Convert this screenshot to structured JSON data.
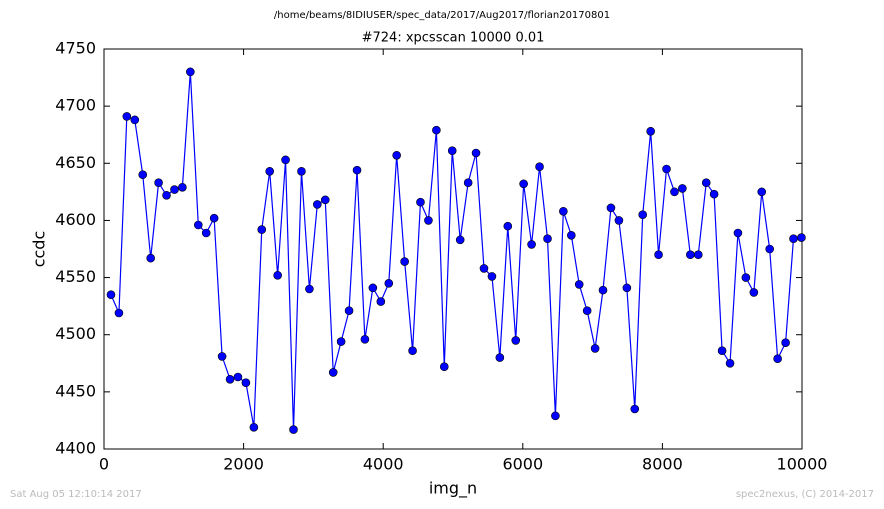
{
  "header": {
    "path": "/home/beams/8IDIUSER/spec_data/2017/Aug2017/florian20170801"
  },
  "footer": {
    "timestamp": "Sat Aug 05 12:10:14 2017",
    "credit": "spec2nexus, (C) 2014-2017"
  },
  "chart_data": {
    "type": "line",
    "title": "#724: xpcsscan 10000 0.01",
    "x_label": "img_n",
    "y_label": "ccdc",
    "x": [
      100,
      214,
      327,
      441,
      555,
      669,
      782,
      896,
      1010,
      1123,
      1237,
      1351,
      1464,
      1578,
      1692,
      1806,
      1919,
      2033,
      2147,
      2260,
      2374,
      2488,
      2601,
      2715,
      2829,
      2943,
      3056,
      3170,
      3284,
      3397,
      3511,
      3625,
      3738,
      3852,
      3966,
      4080,
      4193,
      4307,
      4421,
      4534,
      4648,
      4762,
      4875,
      4989,
      5103,
      5217,
      5330,
      5444,
      5558,
      5671,
      5785,
      5899,
      6012,
      6126,
      6240,
      6354,
      6467,
      6581,
      6695,
      6808,
      6922,
      7036,
      7149,
      7263,
      7377,
      7491,
      7604,
      7718,
      7832,
      7945,
      8059,
      8173,
      8286,
      8400,
      8514,
      8628,
      8741,
      8855,
      8969,
      9082,
      9196,
      9310,
      9423,
      9537,
      9651,
      9765,
      9878,
      9992
    ],
    "series": [
      {
        "name": "ccdc",
        "color": "#0000ff",
        "values": [
          4535,
          4519,
          4691,
          4688,
          4640,
          4567,
          4633,
          4622,
          4627,
          4629,
          4730,
          4596,
          4589,
          4602,
          4481,
          4461,
          4463,
          4458,
          4419,
          4592,
          4643,
          4552,
          4653,
          4417,
          4643,
          4540,
          4614,
          4618,
          4467,
          4494,
          4521,
          4644,
          4496,
          4541,
          4529,
          4545,
          4657,
          4564,
          4486,
          4616,
          4600,
          4679,
          4472,
          4661,
          4583,
          4633,
          4659,
          4558,
          4551,
          4480,
          4595,
          4495,
          4632,
          4579,
          4647,
          4584,
          4429,
          4608,
          4587,
          4544,
          4521,
          4488,
          4539,
          4611,
          4600,
          4541,
          4435,
          4605,
          4678,
          4570,
          4645,
          4625,
          4628,
          4570,
          4570,
          4633,
          4623,
          4486,
          4475,
          4589,
          4550,
          4537,
          4625,
          4575,
          4479,
          4493,
          4584,
          4585
        ]
      }
    ],
    "xlim": [
      0,
      10000
    ],
    "ylim": [
      4400,
      4750
    ],
    "xticks": [
      0,
      2000,
      4000,
      6000,
      8000,
      10000
    ],
    "yticks": [
      4400,
      4450,
      4500,
      4550,
      4600,
      4650,
      4700,
      4750
    ]
  }
}
